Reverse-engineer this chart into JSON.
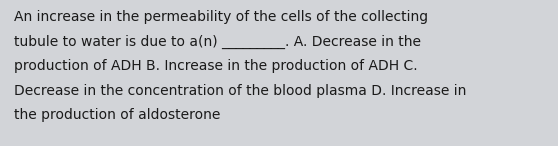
{
  "line1": "An increase in the permeability of the cells of the collecting",
  "line2": "tubule to water is due to a(n) _________. A. Decrease in the",
  "line3": "production of ADH B. Increase in the production of ADH C.",
  "line4": "Decrease in the concentration of the blood plasma D. Increase in",
  "line5": "the production of aldosterone",
  "background_color": "#d2d4d8",
  "text_color": "#1a1a1a",
  "font_size": 10.0,
  "fig_width": 5.58,
  "fig_height": 1.46,
  "dpi": 100
}
